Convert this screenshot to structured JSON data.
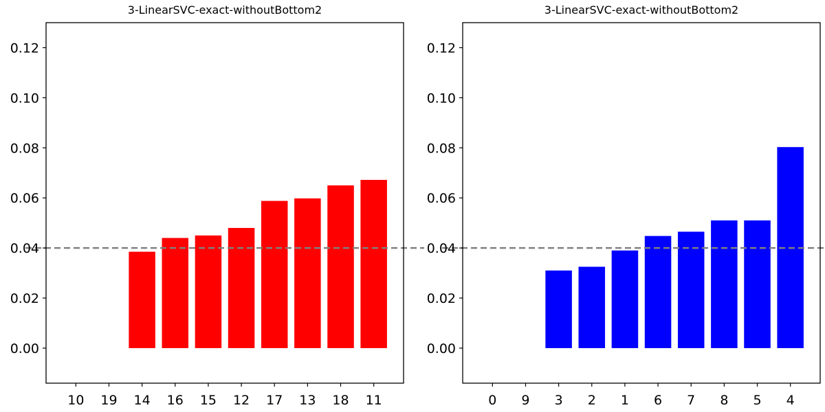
{
  "chart_data": [
    {
      "type": "bar",
      "title": "3-LinearSVC-exact-withoutBottom2",
      "xlabel": "",
      "ylabel": "",
      "categories": [
        "10",
        "19",
        "14",
        "16",
        "15",
        "12",
        "17",
        "13",
        "18",
        "11"
      ],
      "values": [
        0,
        0,
        0.0385,
        0.044,
        0.045,
        0.048,
        0.0588,
        0.0598,
        0.065,
        0.0672
      ],
      "bar_color": "#ff0000",
      "reference_line": {
        "y": 0.04,
        "style": "dashed",
        "color": "#808080"
      },
      "ylim": [
        -0.014,
        0.13
      ],
      "yticks": [
        "0.00",
        "0.02",
        "0.04",
        "0.06",
        "0.08",
        "0.10",
        "0.12"
      ],
      "grid": false,
      "legend": "none"
    },
    {
      "type": "bar",
      "title": "3-LinearSVC-exact-withoutBottom2",
      "xlabel": "",
      "ylabel": "",
      "categories": [
        "0",
        "9",
        "3",
        "2",
        "1",
        "6",
        "7",
        "8",
        "5",
        "4"
      ],
      "values": [
        0,
        0,
        0.031,
        0.0325,
        0.039,
        0.0448,
        0.0465,
        0.051,
        0.051,
        0.0803
      ],
      "bar_color": "#0000ff",
      "reference_line": {
        "y": 0.04,
        "style": "dashed",
        "color": "#808080"
      },
      "ylim": [
        -0.014,
        0.13
      ],
      "yticks": [
        "0.00",
        "0.02",
        "0.04",
        "0.06",
        "0.08",
        "0.10",
        "0.12"
      ],
      "grid": false,
      "legend": "none"
    }
  ]
}
